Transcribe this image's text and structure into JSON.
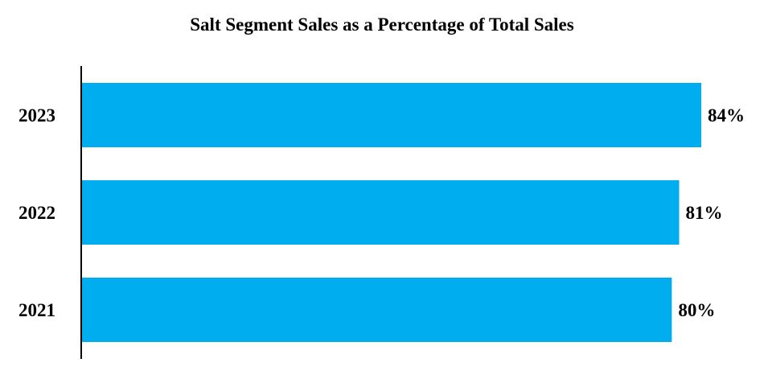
{
  "chart_data": {
    "type": "bar",
    "orientation": "horizontal",
    "title": "Salt Segment Sales as a Percentage of Total Sales",
    "categories": [
      "2023",
      "2022",
      "2021"
    ],
    "values": [
      84,
      81,
      80
    ],
    "value_labels": [
      "84%",
      "81%",
      "80%"
    ],
    "xlabel": "",
    "ylabel": "",
    "grid": false,
    "legend": "none",
    "bar_color": "#00AEEF",
    "axis_color": "#000000"
  }
}
